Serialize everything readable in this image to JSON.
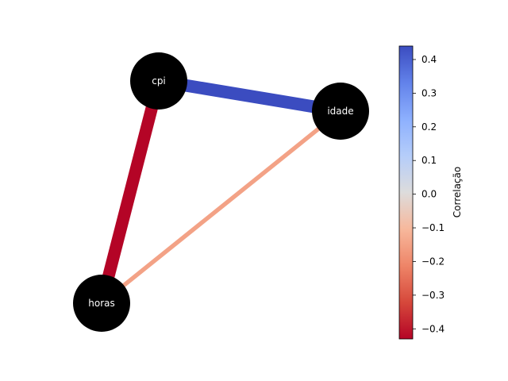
{
  "graph": {
    "nodes": [
      {
        "id": "cpi",
        "label": "cpi"
      },
      {
        "id": "idade",
        "label": "idade"
      },
      {
        "id": "horas",
        "label": "horas"
      }
    ],
    "edges": [
      {
        "source": "cpi",
        "target": "idade",
        "correlation": 0.44
      },
      {
        "source": "cpi",
        "target": "horas",
        "correlation": -0.43
      },
      {
        "source": "idade",
        "target": "horas",
        "correlation": -0.15
      }
    ],
    "node_color": "#000000",
    "colormap": "coolwarm"
  },
  "colorbar": {
    "label": "Correlação",
    "range": [
      -0.43,
      0.44
    ],
    "ticks": [
      {
        "value": 0.4,
        "label": "0.4"
      },
      {
        "value": 0.3,
        "label": "0.3"
      },
      {
        "value": 0.2,
        "label": "0.2"
      },
      {
        "value": 0.1,
        "label": "0.1"
      },
      {
        "value": 0.0,
        "label": "0.0"
      },
      {
        "value": -0.1,
        "label": "−0.1"
      },
      {
        "value": -0.2,
        "label": "−0.2"
      },
      {
        "value": -0.3,
        "label": "−0.3"
      },
      {
        "value": -0.4,
        "label": "−0.4"
      }
    ]
  }
}
